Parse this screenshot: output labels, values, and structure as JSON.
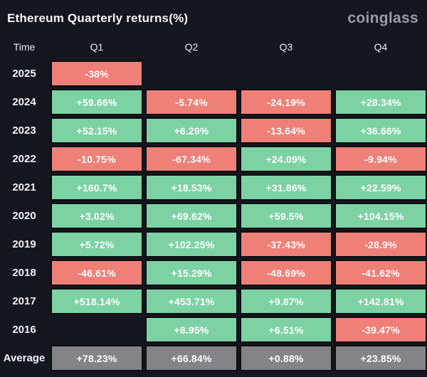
{
  "header": {
    "title": "Ethereum Quarterly returns(%)",
    "logo": "coinglass"
  },
  "colors": {
    "background": "#14171d",
    "positive": "#7dd2a4",
    "negative": "#ef8078",
    "average": "#82848a",
    "cell_text": "#ffffff"
  },
  "table": {
    "columns": [
      "Time",
      "Q1",
      "Q2",
      "Q3",
      "Q4"
    ],
    "rows": [
      {
        "label": "2025",
        "cells": [
          {
            "value": "-38%",
            "state": "negative"
          },
          null,
          null,
          null
        ]
      },
      {
        "label": "2024",
        "cells": [
          {
            "value": "+59.66%",
            "state": "positive"
          },
          {
            "value": "-5.74%",
            "state": "negative"
          },
          {
            "value": "-24.19%",
            "state": "negative"
          },
          {
            "value": "+28.34%",
            "state": "positive"
          }
        ]
      },
      {
        "label": "2023",
        "cells": [
          {
            "value": "+52.15%",
            "state": "positive"
          },
          {
            "value": "+6.29%",
            "state": "positive"
          },
          {
            "value": "-13.64%",
            "state": "negative"
          },
          {
            "value": "+36.66%",
            "state": "positive"
          }
        ]
      },
      {
        "label": "2022",
        "cells": [
          {
            "value": "-10.75%",
            "state": "negative"
          },
          {
            "value": "-67.34%",
            "state": "negative"
          },
          {
            "value": "+24.09%",
            "state": "positive"
          },
          {
            "value": "-9.94%",
            "state": "negative"
          }
        ]
      },
      {
        "label": "2021",
        "cells": [
          {
            "value": "+160.7%",
            "state": "positive"
          },
          {
            "value": "+18.53%",
            "state": "positive"
          },
          {
            "value": "+31.86%",
            "state": "positive"
          },
          {
            "value": "+22.59%",
            "state": "positive"
          }
        ]
      },
      {
        "label": "2020",
        "cells": [
          {
            "value": "+3.02%",
            "state": "positive"
          },
          {
            "value": "+69.62%",
            "state": "positive"
          },
          {
            "value": "+59.5%",
            "state": "positive"
          },
          {
            "value": "+104.15%",
            "state": "positive"
          }
        ]
      },
      {
        "label": "2019",
        "cells": [
          {
            "value": "+5.72%",
            "state": "positive"
          },
          {
            "value": "+102.25%",
            "state": "positive"
          },
          {
            "value": "-37.43%",
            "state": "negative"
          },
          {
            "value": "-28.9%",
            "state": "negative"
          }
        ]
      },
      {
        "label": "2018",
        "cells": [
          {
            "value": "-46.61%",
            "state": "negative"
          },
          {
            "value": "+15.29%",
            "state": "positive"
          },
          {
            "value": "-48.69%",
            "state": "negative"
          },
          {
            "value": "-41.62%",
            "state": "negative"
          }
        ]
      },
      {
        "label": "2017",
        "cells": [
          {
            "value": "+518.14%",
            "state": "positive"
          },
          {
            "value": "+453.71%",
            "state": "positive"
          },
          {
            "value": "+9.87%",
            "state": "positive"
          },
          {
            "value": "+142.81%",
            "state": "positive"
          }
        ]
      },
      {
        "label": "2016",
        "cells": [
          null,
          {
            "value": "+8.95%",
            "state": "positive"
          },
          {
            "value": "+6.51%",
            "state": "positive"
          },
          {
            "value": "-39.47%",
            "state": "negative"
          }
        ]
      },
      {
        "label": "Average",
        "cells": [
          {
            "value": "+78.23%",
            "state": "average"
          },
          {
            "value": "+66.84%",
            "state": "average"
          },
          {
            "value": "+0.88%",
            "state": "average"
          },
          {
            "value": "+23.85%",
            "state": "average"
          }
        ]
      }
    ]
  },
  "chart_data": {
    "type": "heatmap",
    "title": "Ethereum Quarterly returns(%)",
    "source_label": "coinglass",
    "columns": [
      "Q1",
      "Q2",
      "Q3",
      "Q4"
    ],
    "rows": [
      "2025",
      "2024",
      "2023",
      "2022",
      "2021",
      "2020",
      "2019",
      "2018",
      "2017",
      "2016",
      "Average"
    ],
    "values": [
      [
        -38,
        null,
        null,
        null
      ],
      [
        59.66,
        -5.74,
        -24.19,
        28.34
      ],
      [
        52.15,
        6.29,
        -13.64,
        36.66
      ],
      [
        -10.75,
        -67.34,
        24.09,
        -9.94
      ],
      [
        160.7,
        18.53,
        31.86,
        22.59
      ],
      [
        3.02,
        69.62,
        59.5,
        104.15
      ],
      [
        5.72,
        102.25,
        -37.43,
        -28.9
      ],
      [
        -46.61,
        15.29,
        -48.69,
        -41.62
      ],
      [
        518.14,
        453.71,
        9.87,
        142.81
      ],
      [
        null,
        8.95,
        6.51,
        -39.47
      ],
      [
        78.23,
        66.84,
        0.88,
        23.85
      ]
    ],
    "value_unit": "%",
    "color_rule": "positive=green, negative=red, average-row=gray, missing=blank",
    "legend_position": "none",
    "grid": "cell-borders"
  }
}
